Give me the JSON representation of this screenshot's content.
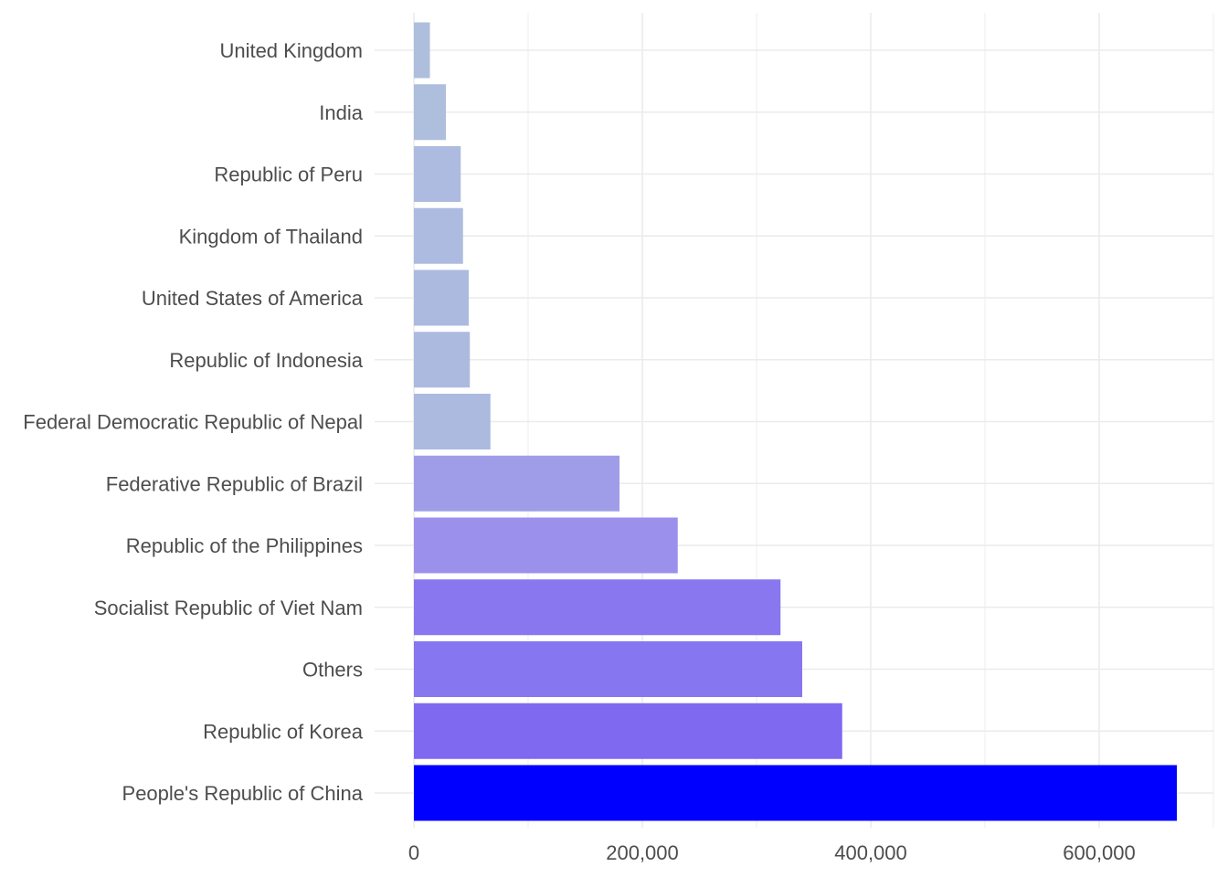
{
  "chart_data": {
    "type": "bar",
    "orientation": "horizontal",
    "title": "",
    "xlabel": "",
    "ylabel": "",
    "categories": [
      "United Kingdom",
      "India",
      "Republic of Peru",
      "Kingdom of Thailand",
      "United States of America",
      "Republic of Indonesia",
      "Federal Democratic Republic of Nepal",
      "Federative Republic of Brazil",
      "Republic of the Philippines",
      "Socialist Republic of Viet Nam",
      "Others",
      "Republic of Korea",
      "People's Republic of China"
    ],
    "values": [
      14000,
      28000,
      41000,
      43000,
      48000,
      49000,
      67000,
      180000,
      231000,
      321000,
      340000,
      375000,
      668000
    ],
    "colors": [
      "#aebedd",
      "#aebedd",
      "#aebbe0",
      "#aebbe0",
      "#adbae0",
      "#adbae0",
      "#acbae0",
      "#9f9de8",
      "#9b91ec",
      "#8877ef",
      "#8676ef",
      "#7e69f0",
      "#0000ff"
    ],
    "xlim": [
      0,
      700000
    ],
    "xticks": [
      0,
      200000,
      400000,
      600000
    ],
    "xtick_labels": [
      "0",
      "200,000",
      "400,000",
      "600,000"
    ],
    "grid": true,
    "legend": "none"
  }
}
